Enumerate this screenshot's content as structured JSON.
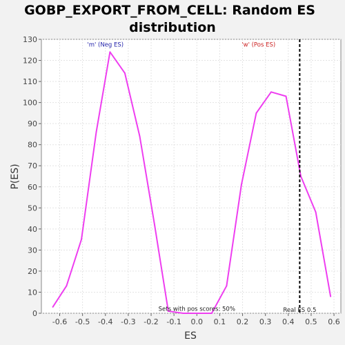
{
  "chart_data": {
    "type": "line",
    "title": "GOBP_EXPORT_FROM_CELL: Random ES distribution",
    "title_lines": [
      "GOBP_EXPORT_FROM_CELL: Random ES",
      "distribution"
    ],
    "xlabel": "ES",
    "ylabel": "P(ES)",
    "xlim": [
      -0.68,
      0.63
    ],
    "ylim": [
      0,
      130
    ],
    "x_ticks": [
      -0.6,
      -0.5,
      -0.4,
      -0.3,
      -0.2,
      -0.1,
      0.0,
      0.1,
      0.2,
      0.3,
      0.4,
      0.5,
      0.6
    ],
    "x_tick_labels": [
      "-0.6",
      "-0.5",
      "-0.4",
      "-0.3",
      "-0.2",
      "-0.1",
      "0.0",
      "0.1",
      "0.2",
      "0.3",
      "0.4",
      "0.5",
      "0.6"
    ],
    "y_ticks": [
      0,
      10,
      20,
      30,
      40,
      50,
      60,
      70,
      80,
      90,
      100,
      110,
      120,
      130
    ],
    "y_tick_labels": [
      "0",
      "10",
      "20",
      "30",
      "40",
      "50",
      "60",
      "70",
      "80",
      "90",
      "100",
      "110",
      "120",
      "130"
    ],
    "grid": true,
    "series": [
      {
        "color": "#ee3df0",
        "x": [
          -0.63,
          -0.57,
          -0.505,
          -0.44,
          -0.38,
          -0.315,
          -0.25,
          -0.185,
          -0.125,
          -0.06,
          0.0,
          0.065,
          0.13,
          0.195,
          0.26,
          0.325,
          0.39,
          0.455,
          0.52,
          0.585
        ],
        "y": [
          3,
          13,
          35,
          86,
          124,
          114,
          84,
          42,
          1,
          0,
          0,
          0,
          13,
          61,
          95,
          105,
          103,
          65,
          48,
          8
        ]
      }
    ],
    "reference_line": {
      "x": 0.45,
      "label": "Real ES 0.5",
      "color": "#000000",
      "style": "dashed"
    },
    "annotations": [
      {
        "text": "'m' (Neg ES)",
        "x": -0.4,
        "y": 126.5,
        "color": "#2222aa"
      },
      {
        "text": "'w' (Pos ES)",
        "x": 0.27,
        "y": 126.5,
        "color": "#cc2222"
      },
      {
        "text": "Sets with pos scores: 50%",
        "x": 0.0,
        "y": 1.2,
        "color": "#222222"
      }
    ]
  }
}
